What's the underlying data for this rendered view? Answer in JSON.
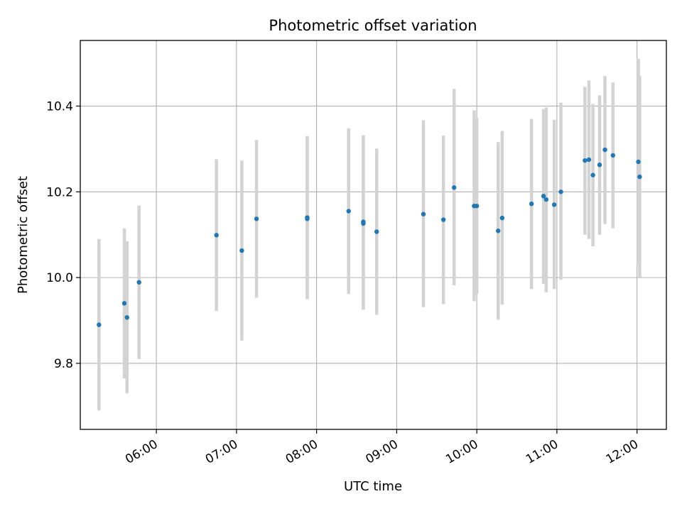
{
  "chart_data": {
    "type": "scatter",
    "title": "Photometric offset variation",
    "xlabel": "UTC time",
    "ylabel": "Photometric offset",
    "x_axis": {
      "unit": "time of day (UTC)",
      "range": [
        "05:03",
        "12:22"
      ],
      "ticks": [
        {
          "time": "06:00",
          "label": "06:00"
        },
        {
          "time": "07:00",
          "label": "07:00"
        },
        {
          "time": "08:00",
          "label": "08:00"
        },
        {
          "time": "09:00",
          "label": "09:00"
        },
        {
          "time": "10:00",
          "label": "10:00"
        },
        {
          "time": "11:00",
          "label": "11:00"
        },
        {
          "time": "12:00",
          "label": "12:00"
        }
      ]
    },
    "y_axis": {
      "range": [
        9.646,
        10.553
      ],
      "ticks": [
        {
          "value": 9.8,
          "label": "9.8"
        },
        {
          "value": 10.0,
          "label": "10.0"
        },
        {
          "value": 10.2,
          "label": "10.2"
        },
        {
          "value": 10.4,
          "label": "10.4"
        }
      ]
    },
    "grid": true,
    "legend": "none",
    "colors": {
      "points": "#1f77b4",
      "error_bars": "#d3d3d3",
      "grid": "#b0b0b0",
      "axes": "#000000"
    },
    "series": [
      {
        "points": [
          {
            "x": "05:17",
            "y": 9.89,
            "y_low": 9.69,
            "y_high": 10.09
          },
          {
            "x": "05:36",
            "y": 9.94,
            "y_low": 9.765,
            "y_high": 10.115
          },
          {
            "x": "05:38",
            "y": 9.907,
            "y_low": 9.73,
            "y_high": 10.085
          },
          {
            "x": "05:47",
            "y": 9.989,
            "y_low": 9.81,
            "y_high": 10.168
          },
          {
            "x": "06:45",
            "y": 10.099,
            "y_low": 9.922,
            "y_high": 10.276
          },
          {
            "x": "07:04",
            "y": 10.063,
            "y_low": 9.853,
            "y_high": 10.273
          },
          {
            "x": "07:15",
            "y": 10.137,
            "y_low": 9.953,
            "y_high": 10.321
          },
          {
            "x": "07:53",
            "y": 10.137,
            "y_low": 9.95,
            "y_high": 10.33
          },
          {
            "x": "07:53",
            "y": 10.14,
            "y_low": 9.95,
            "y_high": 10.33
          },
          {
            "x": "08:24",
            "y": 10.155,
            "y_low": 9.962,
            "y_high": 10.348
          },
          {
            "x": "08:35",
            "y": 10.13,
            "y_low": 9.925,
            "y_high": 10.332
          },
          {
            "x": "08:35",
            "y": 10.126,
            "y_low": 9.925,
            "y_high": 10.332
          },
          {
            "x": "08:45",
            "y": 10.107,
            "y_low": 9.913,
            "y_high": 10.301
          },
          {
            "x": "09:20",
            "y": 10.148,
            "y_low": 9.931,
            "y_high": 10.367
          },
          {
            "x": "09:35",
            "y": 10.135,
            "y_low": 9.938,
            "y_high": 10.331
          },
          {
            "x": "09:43",
            "y": 10.21,
            "y_low": 9.982,
            "y_high": 10.44
          },
          {
            "x": "09:58",
            "y": 10.167,
            "y_low": 9.945,
            "y_high": 10.39
          },
          {
            "x": "10:00",
            "y": 10.167,
            "y_low": 9.962,
            "y_high": 10.372
          },
          {
            "x": "10:16",
            "y": 10.109,
            "y_low": 9.902,
            "y_high": 10.316
          },
          {
            "x": "10:19",
            "y": 10.139,
            "y_low": 9.937,
            "y_high": 10.342
          },
          {
            "x": "10:41",
            "y": 10.172,
            "y_low": 9.973,
            "y_high": 10.37
          },
          {
            "x": "10:50",
            "y": 10.19,
            "y_low": 9.985,
            "y_high": 10.393
          },
          {
            "x": "10:52",
            "y": 10.182,
            "y_low": 9.966,
            "y_high": 10.397
          },
          {
            "x": "10:58",
            "y": 10.17,
            "y_low": 9.973,
            "y_high": 10.368
          },
          {
            "x": "11:03",
            "y": 10.2,
            "y_low": 9.995,
            "y_high": 10.408
          },
          {
            "x": "11:21",
            "y": 10.273,
            "y_low": 10.1,
            "y_high": 10.445
          },
          {
            "x": "11:24",
            "y": 10.275,
            "y_low": 10.09,
            "y_high": 10.46
          },
          {
            "x": "11:27",
            "y": 10.239,
            "y_low": 10.073,
            "y_high": 10.405
          },
          {
            "x": "11:32",
            "y": 10.263,
            "y_low": 10.1,
            "y_high": 10.425
          },
          {
            "x": "11:36",
            "y": 10.298,
            "y_low": 10.125,
            "y_high": 10.47
          },
          {
            "x": "11:42",
            "y": 10.285,
            "y_low": 10.115,
            "y_high": 10.455
          },
          {
            "x": "12:01",
            "y": 10.27,
            "y_low": 10.03,
            "y_high": 10.51
          },
          {
            "x": "12:02",
            "y": 10.235,
            "y_low": 10.0,
            "y_high": 10.47
          }
        ]
      }
    ]
  }
}
